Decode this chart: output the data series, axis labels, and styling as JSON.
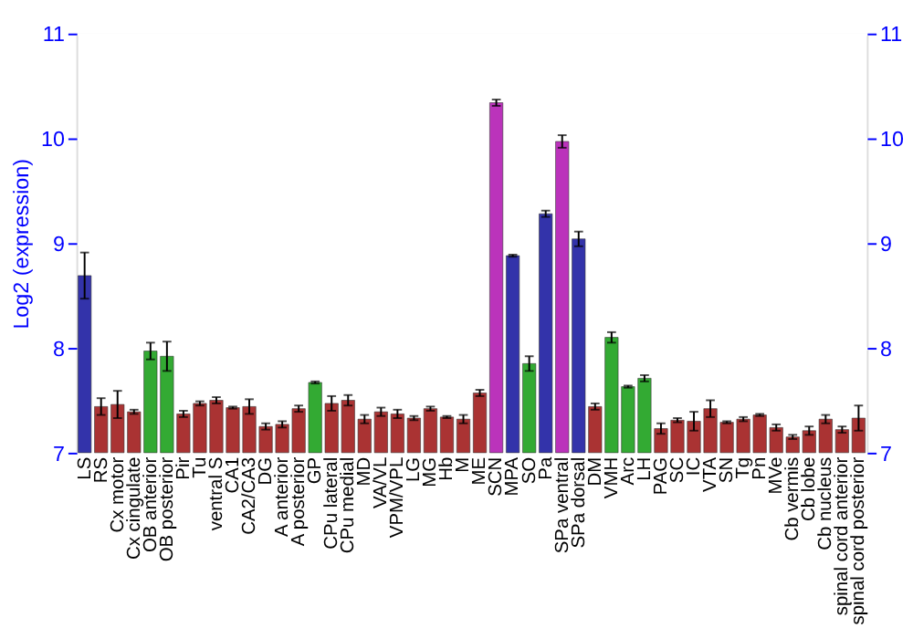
{
  "chart_data": {
    "type": "bar",
    "ylabel": "Log2 (expression)",
    "categories": [
      "LS",
      "RS",
      "Cx motor",
      "Cx cingulate",
      "OB anterior",
      "OB posterior",
      "Pir",
      "Tu",
      "ventral S",
      "CA1",
      "CA2/CA3",
      "DG",
      "A anterior",
      "A posterior",
      "GP",
      "CPu lateral",
      "CPu medial",
      "MD",
      "VA/VL",
      "VPM/VPL",
      "LG",
      "MG",
      "Hb",
      "M",
      "ME",
      "SCN",
      "MPA",
      "SO",
      "Pa",
      "SPa ventral",
      "SPa dorsal",
      "DM",
      "VMH",
      "Arc",
      "LH",
      "PAG",
      "SC",
      "IC",
      "VTA",
      "SN",
      "Tg",
      "Pn",
      "MVe",
      "Cb vermis",
      "Cb lobe",
      "Cb nucleus",
      "spinal cord anterior",
      "spinal cord posterior"
    ],
    "values": [
      8.69,
      7.44,
      7.46,
      7.39,
      7.97,
      7.92,
      7.37,
      7.47,
      7.5,
      7.43,
      7.44,
      7.25,
      7.27,
      7.42,
      7.67,
      7.47,
      7.5,
      7.32,
      7.39,
      7.37,
      7.33,
      7.42,
      7.34,
      7.32,
      7.57,
      10.34,
      8.88,
      7.85,
      9.28,
      9.97,
      9.04,
      7.44,
      8.1,
      7.63,
      7.71,
      7.23,
      7.31,
      7.3,
      7.42,
      7.29,
      7.32,
      7.36,
      7.24,
      7.15,
      7.21,
      7.32,
      7.22,
      7.33
    ],
    "errors": [
      0.22,
      0.08,
      0.13,
      0.02,
      0.08,
      0.14,
      0.03,
      0.02,
      0.03,
      0.01,
      0.07,
      0.03,
      0.03,
      0.03,
      0.01,
      0.07,
      0.05,
      0.04,
      0.04,
      0.04,
      0.02,
      0.02,
      0.01,
      0.04,
      0.03,
      0.03,
      0.01,
      0.07,
      0.03,
      0.06,
      0.07,
      0.03,
      0.05,
      0.01,
      0.03,
      0.05,
      0.02,
      0.09,
      0.08,
      0.01,
      0.02,
      0.01,
      0.03,
      0.02,
      0.04,
      0.04,
      0.03,
      0.12
    ],
    "colors": [
      "#3333aa",
      "#aa3333",
      "#aa3333",
      "#aa3333",
      "#33aa33",
      "#33aa33",
      "#aa3333",
      "#aa3333",
      "#aa3333",
      "#aa3333",
      "#aa3333",
      "#aa3333",
      "#aa3333",
      "#aa3333",
      "#33aa33",
      "#aa3333",
      "#aa3333",
      "#aa3333",
      "#aa3333",
      "#aa3333",
      "#aa3333",
      "#aa3333",
      "#aa3333",
      "#aa3333",
      "#aa3333",
      "#bb33bb",
      "#3333aa",
      "#33aa33",
      "#3333aa",
      "#bb33bb",
      "#3333aa",
      "#aa3333",
      "#33aa33",
      "#33aa33",
      "#33aa33",
      "#aa3333",
      "#aa3333",
      "#aa3333",
      "#aa3333",
      "#aa3333",
      "#aa3333",
      "#aa3333",
      "#aa3333",
      "#aa3333",
      "#aa3333",
      "#aa3333",
      "#aa3333",
      "#aa3333"
    ],
    "ylim": [
      7,
      11
    ],
    "yticks": [
      7,
      8,
      9,
      10,
      11
    ],
    "y2lim": [
      7,
      11
    ],
    "y2ticks": [
      7,
      8,
      9,
      10,
      11
    ],
    "grid": "y"
  }
}
